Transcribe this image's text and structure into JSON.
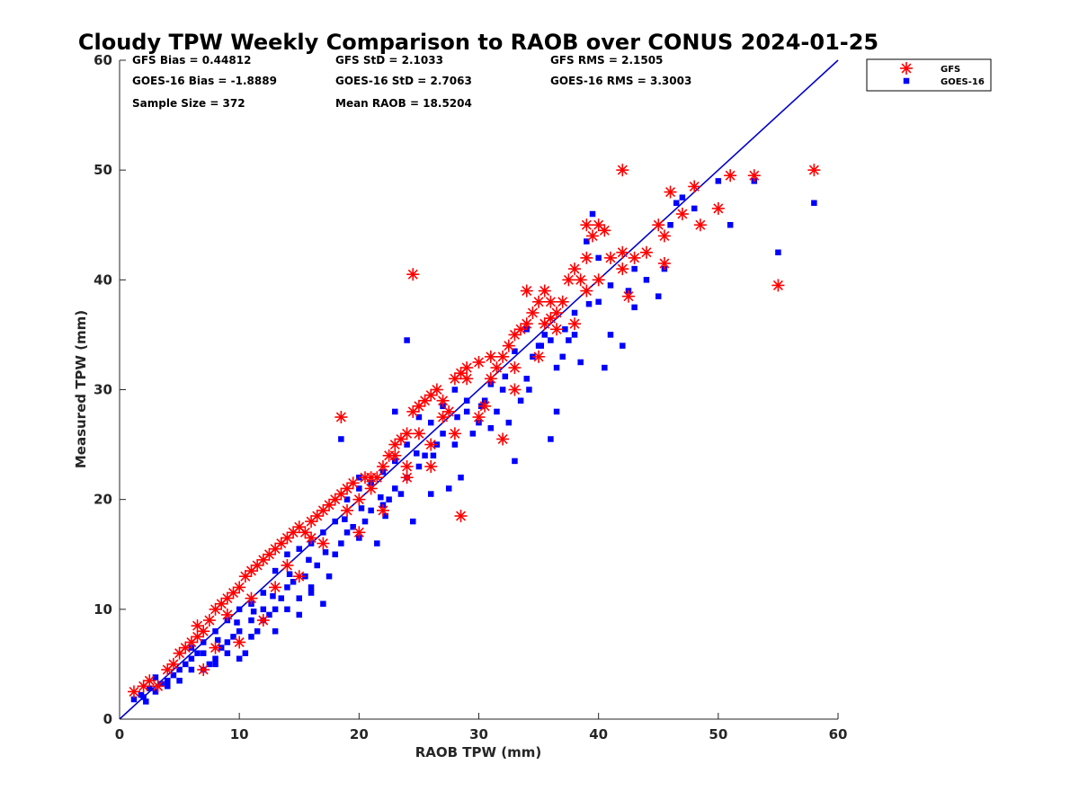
{
  "chart_data": {
    "type": "scatter",
    "title": "Cloudy TPW Weekly Comparison to RAOB over CONUS 2024-01-25",
    "xlabel": "RAOB TPW (mm)",
    "ylabel": "Measured TPW (mm)",
    "xlim": [
      0,
      60
    ],
    "ylim": [
      0,
      60
    ],
    "xticks": [
      "0",
      "10",
      "20",
      "30",
      "40",
      "50",
      "60"
    ],
    "yticks": [
      "0",
      "10",
      "20",
      "30",
      "40",
      "50",
      "60"
    ],
    "grid": false,
    "legend_position": "outside-top-right",
    "stats": [
      [
        "GFS Bias = 0.44812",
        "GFS StD = 2.1033",
        "GFS RMS = 2.1505"
      ],
      [
        "GOES-16 Bias = -1.8889",
        "GOES-16 StD = 2.7063",
        "GOES-16 RMS = 3.3003"
      ],
      [
        "Sample Size = 372",
        "Mean RAOB = 18.5204"
      ]
    ],
    "reference_line": {
      "x": [
        0,
        60
      ],
      "y": [
        0,
        60
      ],
      "color": "#0000cc"
    },
    "series": [
      {
        "name": "GFS",
        "marker": "asterisk",
        "color": "#ff0000",
        "points": [
          [
            1.2,
            2.5
          ],
          [
            2,
            3
          ],
          [
            2.5,
            3.5
          ],
          [
            3.2,
            3
          ],
          [
            4,
            4.5
          ],
          [
            5,
            6
          ],
          [
            5.5,
            6.5
          ],
          [
            6,
            7
          ],
          [
            6.5,
            7.5
          ],
          [
            7,
            8
          ],
          [
            7.5,
            9
          ],
          [
            8,
            10
          ],
          [
            8.5,
            10.5
          ],
          [
            9,
            11
          ],
          [
            9.5,
            11.5
          ],
          [
            10,
            12
          ],
          [
            10.5,
            13
          ],
          [
            11,
            13.5
          ],
          [
            11.5,
            14
          ],
          [
            12,
            14.5
          ],
          [
            12.5,
            15
          ],
          [
            13,
            15.5
          ],
          [
            13.5,
            16
          ],
          [
            14,
            16.5
          ],
          [
            14.5,
            17
          ],
          [
            15,
            17.5
          ],
          [
            15.5,
            17
          ],
          [
            16,
            18
          ],
          [
            16.5,
            18.5
          ],
          [
            17,
            19
          ],
          [
            17.5,
            19.5
          ],
          [
            18,
            20
          ],
          [
            18.5,
            20.5
          ],
          [
            19,
            21
          ],
          [
            19.5,
            21.5
          ],
          [
            20,
            20
          ],
          [
            20.5,
            22
          ],
          [
            21,
            21
          ],
          [
            21.5,
            22
          ],
          [
            22,
            23
          ],
          [
            22.5,
            24
          ],
          [
            23,
            25
          ],
          [
            23.5,
            25.5
          ],
          [
            24,
            26
          ],
          [
            24.5,
            28
          ],
          [
            25,
            28.5
          ],
          [
            25.5,
            29
          ],
          [
            26,
            29.5
          ],
          [
            26.5,
            30
          ],
          [
            27,
            27.5
          ],
          [
            27.5,
            28
          ],
          [
            28,
            31
          ],
          [
            28.5,
            31.5
          ],
          [
            29,
            32
          ],
          [
            30,
            32.5
          ],
          [
            30.5,
            28.5
          ],
          [
            31,
            31
          ],
          [
            31.5,
            32
          ],
          [
            32,
            33
          ],
          [
            32.5,
            34
          ],
          [
            33,
            35
          ],
          [
            33.5,
            35.5
          ],
          [
            34,
            36
          ],
          [
            34.5,
            37
          ],
          [
            35,
            38
          ],
          [
            35.5,
            36
          ],
          [
            36,
            36.5
          ],
          [
            36.5,
            37
          ],
          [
            37,
            38
          ],
          [
            37.5,
            40
          ],
          [
            38,
            41
          ],
          [
            38.5,
            40
          ],
          [
            39,
            42
          ],
          [
            39.5,
            44
          ],
          [
            40,
            45
          ],
          [
            41,
            42
          ],
          [
            42,
            41
          ],
          [
            42.5,
            38.5
          ],
          [
            43,
            42
          ],
          [
            44,
            42.5
          ],
          [
            45,
            45
          ],
          [
            45.5,
            44
          ],
          [
            46,
            48
          ],
          [
            47,
            46
          ],
          [
            48,
            48.5
          ],
          [
            48.5,
            45
          ],
          [
            50,
            46.5
          ],
          [
            51,
            49.5
          ],
          [
            53,
            49.5
          ],
          [
            55,
            39.5
          ],
          [
            58,
            50
          ],
          [
            42,
            50
          ],
          [
            24.5,
            40.5
          ],
          [
            18.5,
            27.5
          ],
          [
            28.5,
            18.5
          ],
          [
            32,
            25.5
          ],
          [
            34,
            39
          ],
          [
            35.5,
            39
          ],
          [
            39,
            45
          ],
          [
            40.5,
            44.5
          ],
          [
            7,
            4.5
          ],
          [
            8,
            6.5
          ],
          [
            10,
            7
          ],
          [
            12,
            9
          ],
          [
            13,
            12
          ],
          [
            15,
            13
          ],
          [
            17,
            16
          ],
          [
            20,
            17
          ],
          [
            22,
            19
          ],
          [
            24,
            22
          ],
          [
            26,
            23
          ],
          [
            28,
            26
          ],
          [
            30,
            27.5
          ],
          [
            33,
            30
          ],
          [
            35,
            33
          ],
          [
            38,
            36
          ],
          [
            40,
            40
          ],
          [
            4.5,
            5
          ],
          [
            6.5,
            8.5
          ],
          [
            9,
            9.5
          ],
          [
            11,
            11
          ],
          [
            14,
            14
          ],
          [
            16,
            16.5
          ],
          [
            19,
            19
          ],
          [
            21,
            22
          ],
          [
            23,
            24
          ],
          [
            25,
            26
          ],
          [
            27,
            29
          ],
          [
            29,
            31
          ],
          [
            31,
            33
          ],
          [
            33,
            32
          ],
          [
            36,
            38
          ],
          [
            39,
            39
          ],
          [
            45.5,
            41.5
          ],
          [
            42,
            42.5
          ],
          [
            36.5,
            35.5
          ],
          [
            24,
            23
          ],
          [
            26,
            25
          ]
        ]
      },
      {
        "name": "GOES-16",
        "marker": "square",
        "color": "#0000ff",
        "points": [
          [
            1.2,
            1.8
          ],
          [
            1.8,
            2.2
          ],
          [
            2.2,
            1.6
          ],
          [
            2.5,
            2.8
          ],
          [
            3,
            2.5
          ],
          [
            3.5,
            3.2
          ],
          [
            4,
            3.5
          ],
          [
            4.5,
            4
          ],
          [
            5,
            4.5
          ],
          [
            5.5,
            5
          ],
          [
            6,
            5.5
          ],
          [
            6.5,
            6
          ],
          [
            7,
            4.5
          ],
          [
            7.5,
            5
          ],
          [
            8,
            5.5
          ],
          [
            8.5,
            6.5
          ],
          [
            9,
            7
          ],
          [
            9.5,
            7.5
          ],
          [
            10,
            5.5
          ],
          [
            10.5,
            6
          ],
          [
            11,
            7.5
          ],
          [
            11.5,
            8
          ],
          [
            12,
            9
          ],
          [
            12.5,
            9.5
          ],
          [
            13,
            10
          ],
          [
            13.5,
            11
          ],
          [
            14,
            12
          ],
          [
            14.5,
            12.5
          ],
          [
            15,
            11
          ],
          [
            15.5,
            13
          ],
          [
            16,
            12
          ],
          [
            16.5,
            14
          ],
          [
            17,
            10.5
          ],
          [
            17.5,
            13
          ],
          [
            18,
            15
          ],
          [
            18.5,
            16
          ],
          [
            19,
            17
          ],
          [
            19.5,
            17.5
          ],
          [
            20,
            16.5
          ],
          [
            20.5,
            18
          ],
          [
            21,
            19
          ],
          [
            21.5,
            16
          ],
          [
            22,
            19.5
          ],
          [
            22.5,
            20
          ],
          [
            23,
            21
          ],
          [
            23.5,
            20.5
          ],
          [
            24,
            22
          ],
          [
            24.5,
            18
          ],
          [
            25,
            23
          ],
          [
            25.5,
            24
          ],
          [
            26,
            20.5
          ],
          [
            26.5,
            25
          ],
          [
            27,
            26
          ],
          [
            27.5,
            21
          ],
          [
            28,
            25
          ],
          [
            28.5,
            22
          ],
          [
            29,
            28
          ],
          [
            29.5,
            26
          ],
          [
            30,
            27
          ],
          [
            30.5,
            29
          ],
          [
            31,
            26.5
          ],
          [
            31.5,
            28
          ],
          [
            32,
            30
          ],
          [
            32.5,
            27
          ],
          [
            33,
            23.5
          ],
          [
            33.5,
            29
          ],
          [
            34,
            31
          ],
          [
            34.5,
            33
          ],
          [
            35,
            34
          ],
          [
            35.5,
            35
          ],
          [
            36,
            25.5
          ],
          [
            36.5,
            32
          ],
          [
            37,
            33
          ],
          [
            37.5,
            34.5
          ],
          [
            38,
            35
          ],
          [
            38.5,
            32.5
          ],
          [
            39,
            43.5
          ],
          [
            39.5,
            46
          ],
          [
            40,
            42
          ],
          [
            40.5,
            32
          ],
          [
            41,
            35
          ],
          [
            42,
            34
          ],
          [
            42.5,
            39
          ],
          [
            43,
            41
          ],
          [
            44,
            40
          ],
          [
            45,
            38.5
          ],
          [
            45.5,
            41
          ],
          [
            46,
            45
          ],
          [
            46.5,
            47
          ],
          [
            47,
            47.5
          ],
          [
            48,
            46.5
          ],
          [
            50,
            49
          ],
          [
            51,
            45
          ],
          [
            53,
            49
          ],
          [
            55,
            42.5
          ],
          [
            58,
            47
          ],
          [
            24,
            34.5
          ],
          [
            18.5,
            25.5
          ],
          [
            23,
            28
          ],
          [
            36.5,
            28
          ],
          [
            33,
            33.5
          ],
          [
            20,
            22
          ],
          [
            25,
            27.5
          ],
          [
            28,
            30
          ],
          [
            5,
            3.5
          ],
          [
            6,
            6.5
          ],
          [
            7,
            7
          ],
          [
            8,
            8
          ],
          [
            9,
            9
          ],
          [
            10,
            10
          ],
          [
            11,
            10.5
          ],
          [
            12,
            11.5
          ],
          [
            13,
            13.5
          ],
          [
            14,
            15
          ],
          [
            15,
            15.5
          ],
          [
            16,
            16
          ],
          [
            17,
            17
          ],
          [
            18,
            18
          ],
          [
            19,
            20
          ],
          [
            20,
            21
          ],
          [
            21,
            21.5
          ],
          [
            22,
            22.5
          ],
          [
            23,
            23.5
          ],
          [
            24,
            25
          ],
          [
            26,
            27
          ],
          [
            27,
            28.5
          ],
          [
            29,
            29
          ],
          [
            31,
            30.5
          ],
          [
            34,
            35.5
          ],
          [
            36,
            34.5
          ],
          [
            38,
            37
          ],
          [
            40,
            38
          ],
          [
            41,
            39.5
          ],
          [
            43,
            37.5
          ],
          [
            7,
            6
          ],
          [
            8,
            5
          ],
          [
            9,
            6
          ],
          [
            10,
            8
          ],
          [
            11,
            9
          ],
          [
            12,
            10
          ],
          [
            13,
            8
          ],
          [
            14,
            10
          ],
          [
            15,
            9.5
          ],
          [
            16,
            11.5
          ],
          [
            3,
            3.8
          ],
          [
            4,
            3
          ],
          [
            2,
            2
          ],
          [
            6,
            4.5
          ],
          [
            8.2,
            7.2
          ],
          [
            9.8,
            8.8
          ],
          [
            11.2,
            9.8
          ],
          [
            12.8,
            11.2
          ],
          [
            14.2,
            13.2
          ],
          [
            15.8,
            14.5
          ],
          [
            17.2,
            15.2
          ],
          [
            18.8,
            18.2
          ],
          [
            20.2,
            19.2
          ],
          [
            21.8,
            20.2
          ],
          [
            22.2,
            18.5
          ],
          [
            24.8,
            24.2
          ],
          [
            26.2,
            24
          ],
          [
            28.2,
            27.5
          ],
          [
            30.2,
            28.5
          ],
          [
            32.2,
            31.2
          ],
          [
            34.2,
            30
          ],
          [
            35.2,
            34
          ],
          [
            37.2,
            35.5
          ],
          [
            39.2,
            37.8
          ]
        ]
      }
    ]
  }
}
